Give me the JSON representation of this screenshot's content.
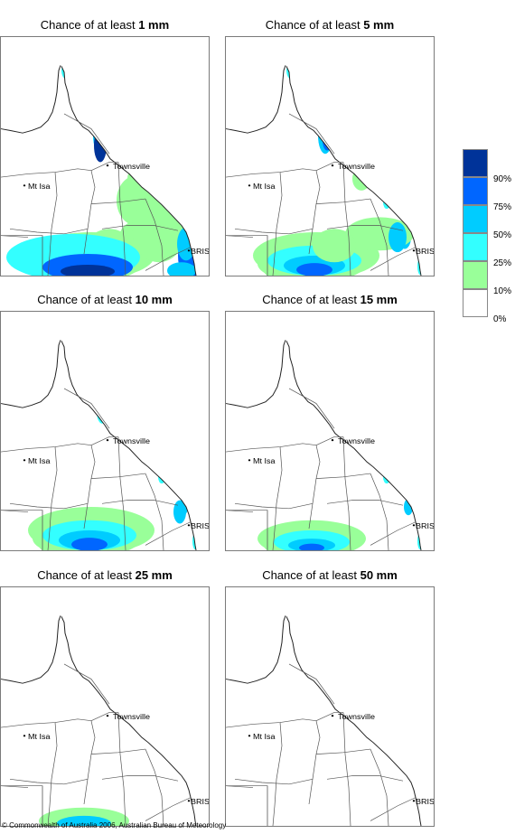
{
  "panels": [
    {
      "prefix": "Chance of at least",
      "amount": "1 mm",
      "level": 6
    },
    {
      "prefix": "Chance of at least",
      "amount": "5 mm",
      "level": 5
    },
    {
      "prefix": "Chance of at least",
      "amount": "10 mm",
      "level": 3
    },
    {
      "prefix": "Chance of at least",
      "amount": "15 mm",
      "level": 2
    },
    {
      "prefix": "Chance of at least",
      "amount": "25 mm",
      "level": 1
    },
    {
      "prefix": "Chance of at least",
      "amount": "50 mm",
      "level": 0
    }
  ],
  "place_labels": {
    "townsville": "Townsville",
    "mt_isa": "Mt Isa",
    "brisbane": "BRIS"
  },
  "legend": {
    "colors": [
      "#003399",
      "#0066ff",
      "#00ccff",
      "#33ffff",
      "#99ff99",
      "#ffffff"
    ],
    "labels": [
      "90%",
      "75%",
      "50%",
      "25%",
      "10%",
      "0%"
    ]
  },
  "copyright": "© Commonwealth of Australia 2006, Australian Bureau of Meteorology"
}
